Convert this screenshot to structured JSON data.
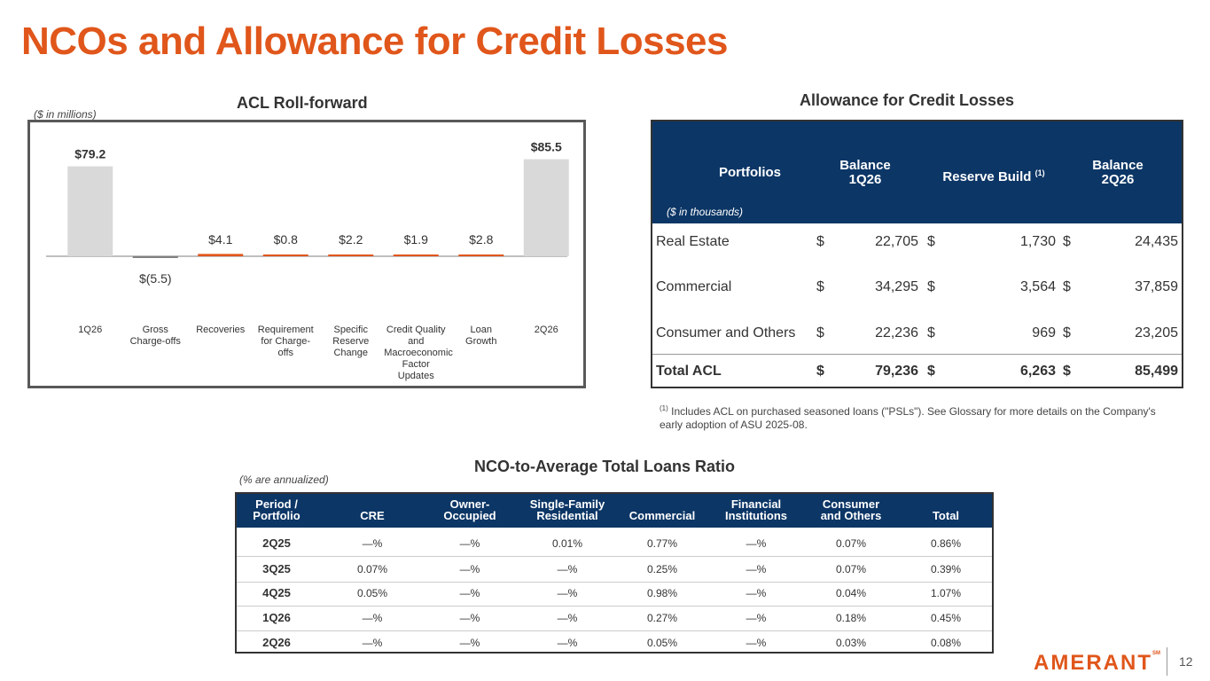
{
  "title": "NCOs and Allowance for Credit Losses",
  "acl_rollforward": {
    "title": "ACL Roll-forward",
    "units": "($ in millions)"
  },
  "chart_data": {
    "type": "bar",
    "title": "ACL Roll-forward",
    "categories": [
      "1Q26",
      "Gross Charge-offs",
      "Recoveries",
      "Requirement for Charge-offs",
      "Specific Reserve Change",
      "Credit Quality and Macroeconomic Factor Updates",
      "Loan Growth",
      "2Q26"
    ],
    "category_display": [
      "1Q26",
      "Gross\nCharge-offs",
      "Recoveries",
      "Requirement\nfor Charge-\noffs",
      "Specific\nReserve\nChange",
      "Credit Quality\nand\nMacroeconomic\nFactor Updates",
      "Loan\nGrowth",
      "2Q26"
    ],
    "values": [
      79.2,
      -5.5,
      4.1,
      0.8,
      2.2,
      1.9,
      2.8,
      85.5
    ],
    "labels": [
      "$79.2",
      "$(5.5)",
      "$4.1",
      "$0.8",
      "$2.2",
      "$1.9",
      "$2.8",
      "$85.5"
    ],
    "kinds": [
      "total",
      "decrease",
      "increase",
      "increase",
      "increase",
      "increase",
      "increase",
      "total"
    ],
    "colors": {
      "total": "#d9d9d9",
      "decrease": "#7f7f7f",
      "increase": "#e0561b"
    },
    "xlabel": "",
    "ylabel": ""
  },
  "allowance": {
    "title": "Allowance for Credit Losses",
    "headers": {
      "portfolios": "Portfolios",
      "balance_1q26_l1": "Balance",
      "balance_1q26_l2": "1Q26",
      "reserve_build": "Reserve Build",
      "reserve_build_sup": "(1)",
      "balance_2q26_l1": "Balance",
      "balance_2q26_l2": "2Q26"
    },
    "units": "($ in thousands)",
    "rows": [
      {
        "label": "Real Estate",
        "b1_cur": "$",
        "b1": "22,705",
        "rb_cur": "$",
        "rb": "1,730",
        "b2_cur": "$",
        "b2": "24,435"
      },
      {
        "label": "Commercial",
        "b1_cur": "$",
        "b1": "34,295",
        "rb_cur": "$",
        "rb": "3,564",
        "b2_cur": "$",
        "b2": "37,859"
      },
      {
        "label": "Consumer and Others",
        "b1_cur": "$",
        "b1": "22,236",
        "rb_cur": "$",
        "rb": "969",
        "b2_cur": "$",
        "b2": "23,205"
      },
      {
        "label": "Total ACL",
        "b1_cur": "$",
        "b1": "79,236",
        "rb_cur": "$",
        "rb": "6,263",
        "b2_cur": "$",
        "b2": "85,499"
      }
    ],
    "footnote_sup": "(1)",
    "footnote": "Includes ACL on purchased seasoned loans (\"PSLs\"). See Glossary for more details on the Company's early adoption of ASU 2025-08."
  },
  "nco": {
    "title": "NCO-to-Average Total Loans Ratio",
    "units": "(% are annualized)",
    "headers": [
      [
        "Period /",
        "Portfolio"
      ],
      [
        "",
        "CRE"
      ],
      [
        "Owner-",
        "Occupied"
      ],
      [
        "Single-Family",
        "Residential"
      ],
      [
        "",
        "Commercial"
      ],
      [
        "Financial",
        "Institutions"
      ],
      [
        "Consumer",
        "and Others"
      ],
      [
        "",
        "Total"
      ]
    ],
    "rows": [
      [
        "2Q25",
        "—%",
        "—%",
        "0.01%",
        "0.77%",
        "—%",
        "0.07%",
        "0.86%"
      ],
      [
        "3Q25",
        "0.07%",
        "—%",
        "—%",
        "0.25%",
        "—%",
        "0.07%",
        "0.39%"
      ],
      [
        "4Q25",
        "0.05%",
        "—%",
        "—%",
        "0.98%",
        "—%",
        "0.04%",
        "1.07%"
      ],
      [
        "1Q26",
        "—%",
        "—%",
        "—%",
        "0.27%",
        "—%",
        "0.18%",
        "0.45%"
      ],
      [
        "2Q26",
        "—%",
        "—%",
        "—%",
        "0.05%",
        "—%",
        "0.03%",
        "0.08%"
      ]
    ]
  },
  "footer": {
    "logo": "AMERANT",
    "logo_mark": "SM",
    "page": "12"
  }
}
